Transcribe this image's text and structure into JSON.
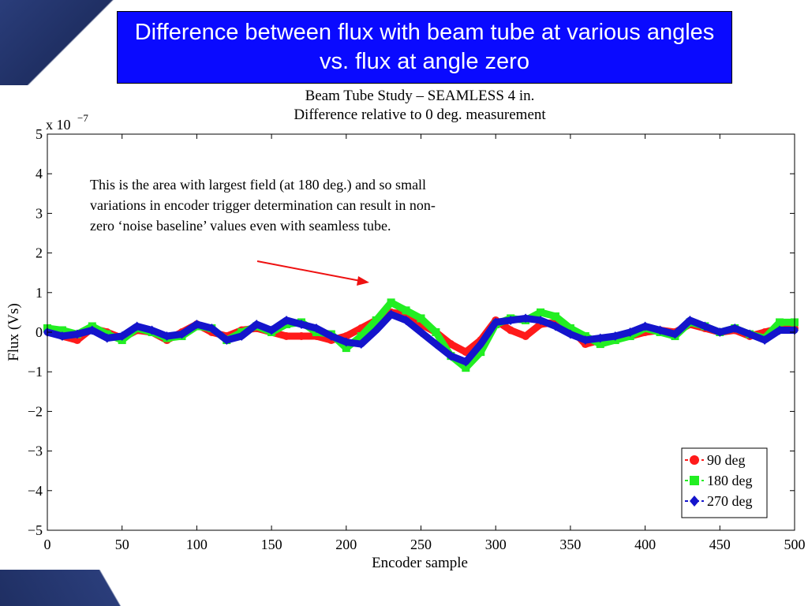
{
  "slide": {
    "title": "Difference between flux with beam tube at various angles vs. flux at angle zero",
    "annotation": "This is the area with largest field (at 180 deg.) and so small variations in encoder trigger determination can result in non-zero ‘noise baseline’ values even with seamless tube.",
    "colors": {
      "title_bg": "#0a0aff",
      "title_text": "#ffffff",
      "arrow": "#ee1111",
      "corner": "#1f2f63"
    }
  },
  "chart_data": {
    "type": "line",
    "title": "Beam Tube Study – SEAMLESS 4 in.",
    "subtitle": "Difference relative to 0 deg. measurement",
    "xlabel": "Encoder sample",
    "ylabel": "Flux (Vs)",
    "y_exponent_label": "x 10",
    "y_exponent": "−7",
    "xlim": [
      0,
      500
    ],
    "ylim": [
      -5,
      5
    ],
    "xticks": [
      "0",
      "50",
      "100",
      "150",
      "200",
      "250",
      "300",
      "350",
      "400",
      "450",
      "500"
    ],
    "yticks": [
      "5",
      "4",
      "3",
      "2",
      "1",
      "0",
      "−1",
      "−2",
      "−3",
      "−4",
      "−5"
    ],
    "grid": false,
    "legend": "bottom-right",
    "x": [
      0,
      10,
      20,
      30,
      40,
      50,
      60,
      70,
      80,
      90,
      100,
      110,
      120,
      130,
      140,
      150,
      160,
      170,
      180,
      190,
      200,
      210,
      220,
      230,
      240,
      250,
      260,
      270,
      280,
      290,
      300,
      310,
      320,
      330,
      340,
      350,
      360,
      370,
      380,
      390,
      400,
      410,
      420,
      430,
      440,
      450,
      460,
      470,
      480,
      490,
      500
    ],
    "series": [
      {
        "name": "90 deg",
        "color": "#ff1a1a",
        "marker": "circle",
        "values": [
          0.05,
          -0.1,
          -0.2,
          0.1,
          0.0,
          -0.15,
          0.05,
          0.0,
          -0.2,
          0.0,
          0.2,
          0.0,
          -0.1,
          0.05,
          0.1,
          0.0,
          -0.1,
          -0.1,
          -0.1,
          -0.2,
          -0.1,
          0.1,
          0.3,
          0.5,
          0.45,
          0.2,
          0.0,
          -0.3,
          -0.5,
          -0.2,
          0.3,
          0.05,
          -0.1,
          0.2,
          0.25,
          0.1,
          -0.3,
          -0.2,
          -0.15,
          -0.1,
          0.0,
          0.05,
          0.0,
          0.2,
          0.1,
          0.0,
          0.05,
          -0.1,
          0.0,
          0.1,
          0.1
        ]
      },
      {
        "name": "180 deg",
        "color": "#22ee22",
        "marker": "square",
        "values": [
          0.1,
          0.05,
          -0.05,
          0.15,
          -0.05,
          -0.2,
          0.1,
          0.0,
          -0.15,
          -0.1,
          0.15,
          0.1,
          -0.2,
          0.0,
          0.15,
          0.0,
          0.2,
          0.25,
          0.0,
          -0.05,
          -0.4,
          -0.1,
          0.3,
          0.75,
          0.55,
          0.35,
          0.0,
          -0.6,
          -0.9,
          -0.5,
          0.2,
          0.35,
          0.3,
          0.5,
          0.4,
          0.1,
          -0.1,
          -0.3,
          -0.2,
          -0.1,
          0.1,
          0.0,
          -0.1,
          0.25,
          0.15,
          0.0,
          0.1,
          -0.05,
          -0.15,
          0.25,
          0.25
        ]
      },
      {
        "name": "270 deg",
        "color": "#1414cc",
        "marker": "diamond",
        "values": [
          0.0,
          -0.1,
          -0.05,
          0.05,
          -0.15,
          -0.1,
          0.15,
          0.05,
          -0.1,
          -0.05,
          0.2,
          0.1,
          -0.2,
          -0.1,
          0.2,
          0.05,
          0.3,
          0.2,
          0.1,
          -0.1,
          -0.25,
          -0.3,
          0.05,
          0.45,
          0.3,
          0.0,
          -0.3,
          -0.6,
          -0.75,
          -0.3,
          0.25,
          0.3,
          0.35,
          0.3,
          0.15,
          -0.05,
          -0.2,
          -0.15,
          -0.1,
          0.0,
          0.15,
          0.05,
          -0.05,
          0.3,
          0.15,
          0.0,
          0.1,
          -0.05,
          -0.2,
          0.05,
          0.05
        ]
      }
    ]
  }
}
